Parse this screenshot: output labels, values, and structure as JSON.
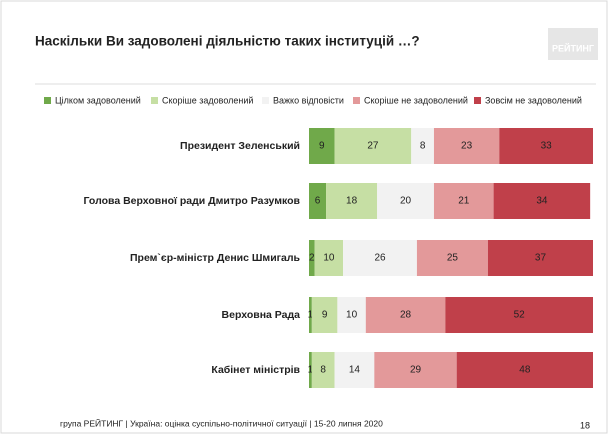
{
  "chart_data": {
    "type": "stacked-bar-horizontal",
    "title": "Наскільки Ви задоволені діяльністю таких інституцій …?",
    "categories": [
      "Президент Зеленський",
      "Голова Верховної ради Дмитро Разумков",
      "Прем`єр-міністр Денис Шмигаль",
      "Верховна Рада",
      "Кабінет міністрів"
    ],
    "series": [
      {
        "name": "Цілком задоволений",
        "color": "#70a94a",
        "values": [
          9,
          6,
          2,
          1,
          1
        ]
      },
      {
        "name": "Скоріше задоволений",
        "color": "#c6dfa4",
        "values": [
          27,
          18,
          10,
          9,
          8
        ]
      },
      {
        "name": "Важко відповісти",
        "color": "#f2f2f2",
        "values": [
          8,
          20,
          26,
          10,
          14
        ]
      },
      {
        "name": "Скоріше не задоволений",
        "color": "#e3999a",
        "values": [
          23,
          21,
          25,
          28,
          29
        ]
      },
      {
        "name": "Зовсім не задоволений",
        "color": "#c0404a",
        "values": [
          33,
          34,
          37,
          52,
          48
        ]
      }
    ],
    "xlim": [
      0,
      100
    ]
  },
  "logo": "РЕЙТИНГ",
  "footer": "група РЕЙТИНГ |  Україна: оцінка суспільно-політичної  ситуації  | 15-20 липня 2020",
  "page_number": 18
}
